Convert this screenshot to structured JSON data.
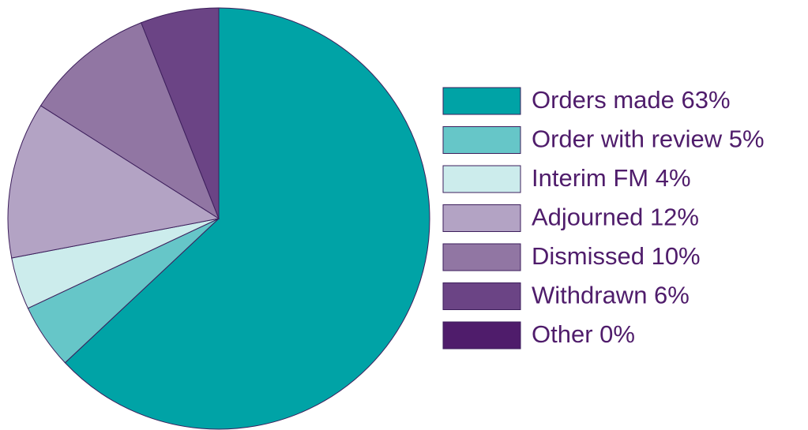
{
  "chart_data": {
    "type": "pie",
    "categories": [
      "Orders made 63%",
      "Order with review 5%",
      "Interim FM 4%",
      "Adjourned 12%",
      "Dismissed 10%",
      "Withdrawn 6%",
      "Other 0%"
    ],
    "values": [
      63,
      5,
      4,
      12,
      10,
      6,
      0
    ],
    "colors": [
      "#00a3a6",
      "#66c6c8",
      "#ccecec",
      "#b3a3c4",
      "#9176a3",
      "#6b4485",
      "#4f1c6b"
    ],
    "legend": "right"
  }
}
